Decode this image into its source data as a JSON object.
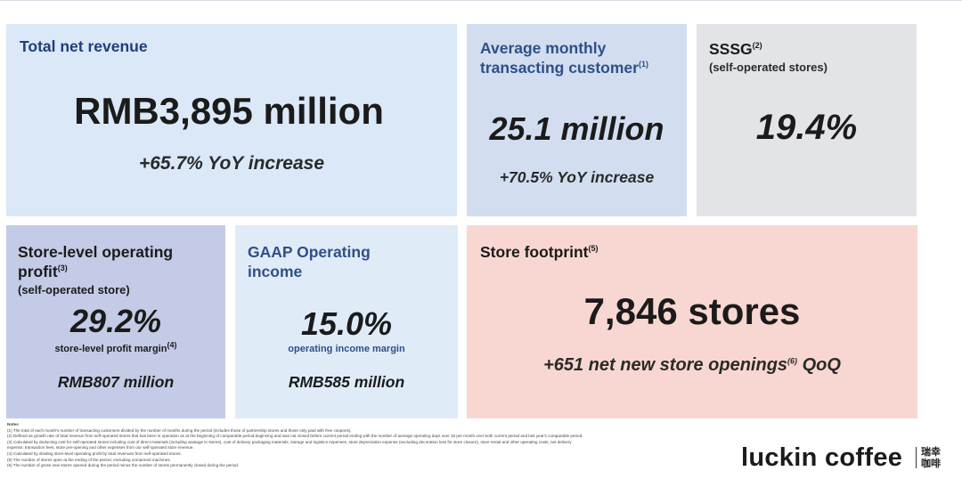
{
  "revenue": {
    "title": "Total net revenue",
    "value": "RMB3,895 million",
    "change": "+65.7% YoY increase"
  },
  "customer": {
    "title_line1": "Average monthly",
    "title_line2": "transacting customer",
    "title_sup": "(1)",
    "value": "25.1 million",
    "change": "+70.5% YoY increase"
  },
  "sssg": {
    "title": "SSSG",
    "title_sup": "(2)",
    "subtitle": "(self-operated stores)",
    "value": "19.4%"
  },
  "store_profit": {
    "title_line1": "Store-level operating",
    "title_line2": "profit",
    "title_sup": "(3)",
    "subtitle": "(self-operated store)",
    "value": "29.2%",
    "caption": "store-level profit margin",
    "caption_sup": "(4)",
    "amount": "RMB807 million"
  },
  "gaap": {
    "title_line1": "GAAP Operating",
    "title_line2": "income",
    "value": "15.0%",
    "caption": "operating income margin",
    "amount": "RMB585 million"
  },
  "footprint": {
    "title": "Store footprint",
    "title_sup": "(5)",
    "value": "7,846 stores",
    "change_pre": "+651 net new store openings",
    "change_sup": "(6)",
    "change_post": " QoQ"
  },
  "notes": {
    "heading": "Notes",
    "items": [
      "(1) The total of each month's number of transacting customers divided by the number of months during the period (includes those of partnership stores and those only paid with free coupons).",
      "(2) Defined as growth rate of total revenue from self-operated stores that has been in operation as at the beginning of comparable period beginning and was not closed before current period ending with the number of average operating days over 15 per month over both current period and last year's comparable period.",
      "(3) Calculated by deducting cost for self-operated stores including cost of direct materials (including wastage in stores), cost of delivery packaging materials, storage and logistics expenses, store depreciation expense (excluding decoration loss for store closure), store rental and other operating costs, net delivery",
      "expense, transaction fees, store pre-opening and other expenses from our self-operated store revenue.",
      "(4) Calculated by dividing store-level operating profit by total revenues from self-operated stores.",
      "(5) The number of stores open at the ending of the period, excluding unmanned machines.",
      "(6) The number of gross new stores opened during the period minus the number of stores permanently closed during the period."
    ]
  },
  "logo": {
    "text": "luckin coffee",
    "cn_line1": "瑞幸",
    "cn_line2": "咖啡"
  },
  "colors": {
    "revenue_bg": "#dbe8f7",
    "customer_bg": "#d2def0",
    "sssg_bg": "#e3e4e7",
    "store_profit_bg": "#c4cbe6",
    "gaap_bg": "#e0ebf8",
    "footprint_bg": "#f8d7d2",
    "accent_blue": "#2f4f88"
  }
}
